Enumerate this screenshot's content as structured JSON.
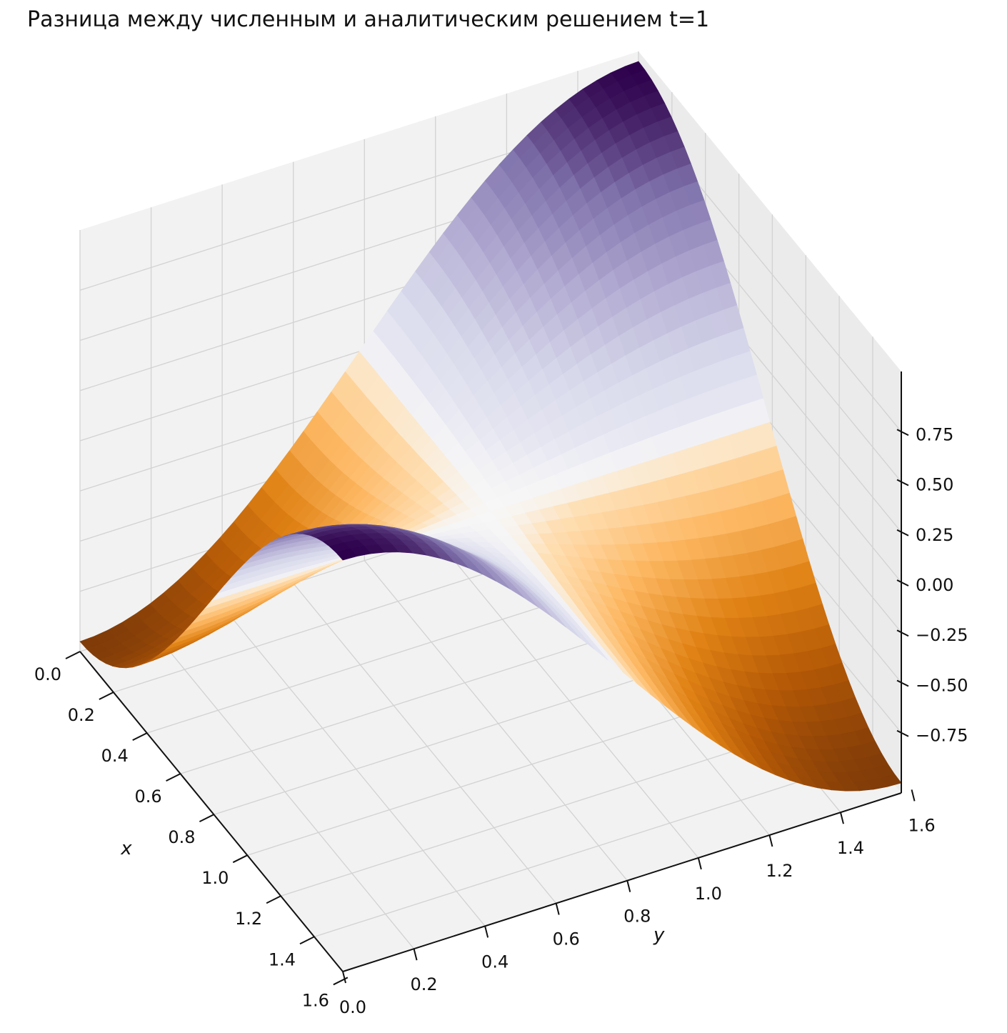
{
  "chart_data": {
    "type": "surface",
    "title": "Разница между численным и аналитическим решением t=1",
    "xlabel": "x",
    "ylabel": "y",
    "zlabel": "",
    "xlim": [
      0,
      1.5708
    ],
    "ylim": [
      0,
      1.5708
    ],
    "zlim": [
      -1,
      1
    ],
    "x_ticks": [
      "0.0",
      "0.2",
      "0.4",
      "0.6",
      "0.8",
      "1.0",
      "1.2",
      "1.4",
      "1.6"
    ],
    "y_ticks": [
      "0.0",
      "0.2",
      "0.4",
      "0.6",
      "0.8",
      "1.0",
      "1.2",
      "1.4",
      "1.6"
    ],
    "z_ticks": [
      "0.75",
      "0.50",
      "0.25",
      "0.00",
      "−0.25",
      "−0.50",
      "−0.75"
    ],
    "surface": {
      "x": [
        0,
        0.1571,
        0.3142,
        0.4712,
        0.6283,
        0.7854,
        0.9425,
        1.0996,
        1.2566,
        1.4137,
        1.5708
      ],
      "y": [
        0,
        0.1571,
        0.3142,
        0.4712,
        0.6283,
        0.7854,
        0.9425,
        1.0996,
        1.2566,
        1.4137,
        1.5708
      ],
      "z_at_corners": {
        "x0_y0": -1,
        "x0_ymax": 1,
        "xmax_y0": -1,
        "xmax_ymax": 1
      },
      "z_at_midpoints": {
        "x_mid_y0": 1,
        "x_mid_ymax": -1,
        "center": 0
      }
    },
    "colormap": "PuOr",
    "grid": true
  }
}
